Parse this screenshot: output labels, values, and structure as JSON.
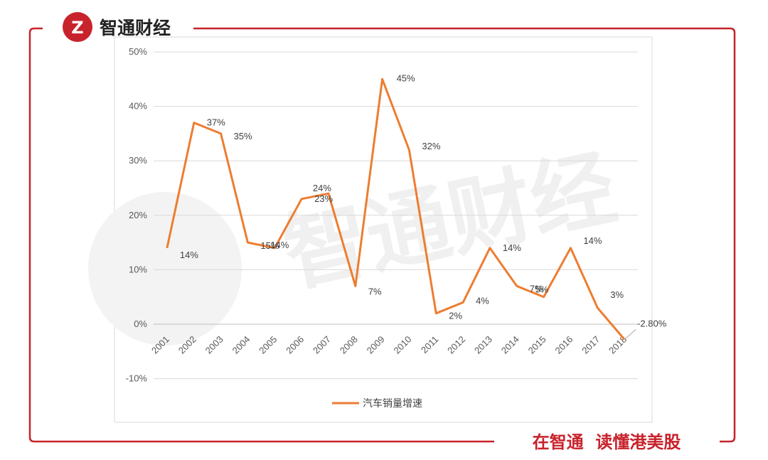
{
  "header": {
    "brand": "智通财经",
    "logo_glyph": "Z"
  },
  "footer": {
    "slogan": "在智通  读懂港美股"
  },
  "watermark": {
    "text": "智通财经"
  },
  "colors": {
    "frame": "#c8232c",
    "series": "#ed7d31",
    "grid": "#d9d9d9"
  },
  "chart_data": {
    "type": "line",
    "title": "",
    "xlabel": "",
    "ylabel": "",
    "categories": [
      "2001",
      "2002",
      "2003",
      "2004",
      "2005",
      "2006",
      "2007",
      "2008",
      "2009",
      "2010",
      "2011",
      "2012",
      "2013",
      "2014",
      "2015",
      "2016",
      "2017",
      "2018"
    ],
    "series": [
      {
        "name": "汽车销量增速",
        "values": [
          14,
          37,
          35,
          15,
          14,
          23,
          24,
          7,
          45,
          32,
          2,
          4,
          14,
          7,
          5,
          14,
          3,
          -2.8
        ],
        "labels": [
          "14%",
          "37%",
          "35%",
          "15%",
          "14%",
          "23%",
          "24%",
          "7%",
          "45%",
          "32%",
          "2%",
          "4%",
          "14%",
          "7%",
          "5%",
          "14%",
          "3%",
          "-2.80%"
        ]
      }
    ],
    "ylim": [
      -10,
      50
    ],
    "yticks": [
      -10,
      0,
      10,
      20,
      30,
      40,
      50
    ],
    "ytick_labels": [
      "-10%",
      "0%",
      "10%",
      "20%",
      "30%",
      "40%",
      "50%"
    ],
    "grid": true,
    "legend": "bottom-center"
  }
}
